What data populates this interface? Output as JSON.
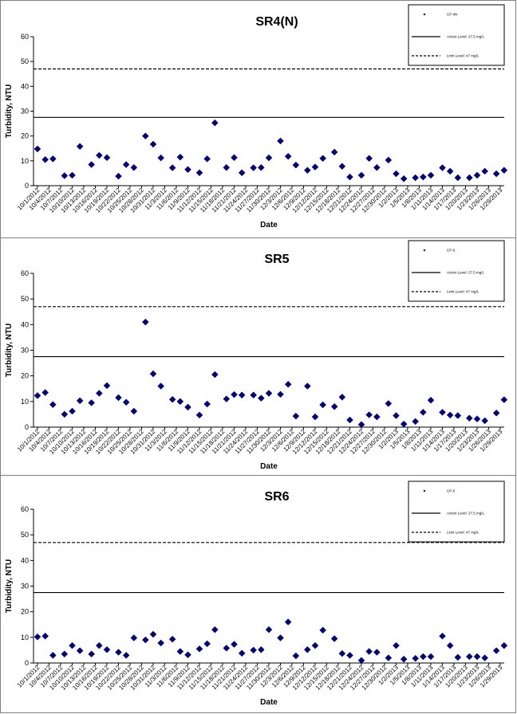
{
  "chart_data": [
    {
      "type": "scatter",
      "title": "SR4(N)",
      "xlabel": "Date",
      "ylabel": "Turbidity, NTU",
      "ylim": [
        0,
        60
      ],
      "yticks": [
        0,
        10,
        20,
        30,
        40,
        50,
        60
      ],
      "grid": false,
      "legend_position": "top-right",
      "legend": {
        "points": "CP-4N",
        "action": "Action Level: 27.5 mg/L",
        "limit": "Limit Level: 47 mg/L"
      },
      "reference_lines": [
        {
          "name": "Action Level",
          "y": 27.5,
          "style": "solid"
        },
        {
          "name": "Limit Level",
          "y": 47,
          "style": "dashed"
        }
      ],
      "x": [
        "10/1/2012",
        "10/4/2012",
        "10/7/2012",
        "10/10/2012",
        "10/13/2012",
        "10/16/2012",
        "10/19/2012",
        "10/22/2012",
        "10/25/2012",
        "10/28/2012",
        "10/31/2012",
        "11/3/2012",
        "11/6/2012",
        "11/9/2012",
        "11/12/2012",
        "11/15/2012",
        "11/18/2012",
        "11/21/2012",
        "11/24/2012",
        "11/27/2012",
        "11/30/2012",
        "12/3/2012",
        "12/6/2012",
        "12/9/2012",
        "12/12/2012",
        "12/15/2012",
        "12/18/2012",
        "12/21/2012",
        "12/24/2012",
        "12/27/2012",
        "12/30/2012",
        "1/2/2013",
        "1/5/2013",
        "1/8/2013",
        "1/11/2013",
        "1/14/2013",
        "1/17/2013",
        "1/20/2013",
        "1/23/2013",
        "1/26/2013",
        "1/29/2013"
      ],
      "series": [
        {
          "name": "CP-4N",
          "points": [
            [
              "10/1/2012",
              14.8
            ],
            [
              "10/3/2012",
              10.5
            ],
            [
              "10/5/2012",
              10.8
            ],
            [
              "10/8/2012",
              4.0
            ],
            [
              "10/10/2012",
              4.2
            ],
            [
              "10/12/2012",
              15.8
            ],
            [
              "10/15/2012",
              8.5
            ],
            [
              "10/17/2012",
              12.2
            ],
            [
              "10/19/2012",
              11.3
            ],
            [
              "10/22/2012",
              3.8
            ],
            [
              "10/24/2012",
              8.5
            ],
            [
              "10/26/2012",
              7.3
            ],
            [
              "10/29/2012",
              20.0
            ],
            [
              "10/31/2012",
              16.7
            ],
            [
              "11/2/2012",
              11.2
            ],
            [
              "11/5/2012",
              7.2
            ],
            [
              "11/7/2012",
              11.5
            ],
            [
              "11/9/2012",
              6.5
            ],
            [
              "11/12/2012",
              5.2
            ],
            [
              "11/14/2012",
              10.8
            ],
            [
              "11/16/2012",
              25.3
            ],
            [
              "11/19/2012",
              7.3
            ],
            [
              "11/21/2012",
              11.3
            ],
            [
              "11/23/2012",
              5.2
            ],
            [
              "11/26/2012",
              7.2
            ],
            [
              "11/28/2012",
              7.3
            ],
            [
              "11/30/2012",
              11.2
            ],
            [
              "12/3/2012",
              18.0
            ],
            [
              "12/5/2012",
              11.8
            ],
            [
              "12/7/2012",
              8.3
            ],
            [
              "12/10/2012",
              6.2
            ],
            [
              "12/12/2012",
              7.5
            ],
            [
              "12/14/2012",
              11.0
            ],
            [
              "12/17/2012",
              13.5
            ],
            [
              "12/19/2012",
              7.8
            ],
            [
              "12/21/2012",
              3.5
            ],
            [
              "12/24/2012",
              4.2
            ],
            [
              "12/26/2012",
              11.0
            ],
            [
              "12/28/2012",
              7.3
            ],
            [
              "12/31/2012",
              10.3
            ],
            [
              "1/2/2013",
              4.8
            ],
            [
              "1/4/2013",
              2.8
            ],
            [
              "1/7/2013",
              3.2
            ],
            [
              "1/9/2013",
              3.5
            ],
            [
              "1/11/2013",
              4.2
            ],
            [
              "1/14/2013",
              7.2
            ],
            [
              "1/16/2013",
              5.8
            ],
            [
              "1/18/2013",
              3.2
            ],
            [
              "1/21/2013",
              3.2
            ],
            [
              "1/23/2013",
              4.2
            ],
            [
              "1/25/2013",
              5.8
            ],
            [
              "1/28/2013",
              4.8
            ],
            [
              "1/30/2013",
              6.2
            ]
          ]
        }
      ]
    },
    {
      "type": "scatter",
      "title": "SR5",
      "xlabel": "Date",
      "ylabel": "Turbidity, NTU",
      "ylim": [
        0,
        60
      ],
      "yticks": [
        0,
        10,
        20,
        30,
        40,
        50,
        60
      ],
      "grid": false,
      "legend_position": "top-right",
      "legend": {
        "points": "CP-5",
        "action": "Action Level: 27.5 mg/L",
        "limit": "Limit Level: 47 mg/L"
      },
      "reference_lines": [
        {
          "name": "Action Level",
          "y": 27.5,
          "style": "solid"
        },
        {
          "name": "Limit Level",
          "y": 47,
          "style": "dashed"
        }
      ],
      "x": [
        "10/1/2012",
        "10/4/2012",
        "10/7/2012",
        "10/10/2012",
        "10/13/2012",
        "10/16/2012",
        "10/19/2012",
        "10/22/2012",
        "10/25/2012",
        "10/28/2012",
        "10/31/2012",
        "11/3/2012",
        "11/6/2012",
        "11/9/2012",
        "11/12/2012",
        "11/15/2012",
        "11/18/2012",
        "11/21/2012",
        "11/24/2012",
        "11/27/2012",
        "11/30/2012",
        "12/3/2012",
        "12/6/2012",
        "12/9/2012",
        "12/12/2012",
        "12/15/2012",
        "12/18/2012",
        "12/21/2012",
        "12/24/2012",
        "12/27/2012",
        "12/30/2012",
        "1/2/2013",
        "1/5/2013",
        "1/8/2013",
        "1/11/2013",
        "1/14/2013",
        "1/17/2013",
        "1/20/2013",
        "1/23/2013",
        "1/26/2013",
        "1/29/2013"
      ],
      "series": [
        {
          "name": "CP-5",
          "points": [
            [
              "10/1/2012",
              12.3
            ],
            [
              "10/3/2012",
              13.5
            ],
            [
              "10/5/2012",
              8.8
            ],
            [
              "10/8/2012",
              5.0
            ],
            [
              "10/10/2012",
              6.2
            ],
            [
              "10/12/2012",
              10.3
            ],
            [
              "10/15/2012",
              9.5
            ],
            [
              "10/17/2012",
              13.2
            ],
            [
              "10/19/2012",
              16.2
            ],
            [
              "10/22/2012",
              11.5
            ],
            [
              "10/24/2012",
              9.7
            ],
            [
              "10/26/2012",
              6.2
            ],
            [
              "10/29/2012",
              41.0
            ],
            [
              "10/31/2012",
              20.8
            ],
            [
              "11/2/2012",
              16.0
            ],
            [
              "11/5/2012",
              10.8
            ],
            [
              "11/7/2012",
              10.0
            ],
            [
              "11/9/2012",
              7.8
            ],
            [
              "11/12/2012",
              4.7
            ],
            [
              "11/14/2012",
              9.0
            ],
            [
              "11/16/2012",
              20.5
            ],
            [
              "11/19/2012",
              11.0
            ],
            [
              "11/21/2012",
              12.7
            ],
            [
              "11/23/2012",
              12.5
            ],
            [
              "11/26/2012",
              12.5
            ],
            [
              "11/28/2012",
              11.3
            ],
            [
              "11/30/2012",
              13.2
            ],
            [
              "12/3/2012",
              12.8
            ],
            [
              "12/5/2012",
              16.7
            ],
            [
              "12/7/2012",
              4.3
            ],
            [
              "12/10/2012",
              16.0
            ],
            [
              "12/12/2012",
              4.0
            ],
            [
              "12/14/2012",
              8.7
            ],
            [
              "12/17/2012",
              8.0
            ],
            [
              "12/19/2012",
              11.7
            ],
            [
              "12/21/2012",
              2.8
            ],
            [
              "12/24/2012",
              1.0
            ],
            [
              "12/26/2012",
              4.8
            ],
            [
              "12/28/2012",
              4.0
            ],
            [
              "12/31/2012",
              9.2
            ],
            [
              "1/2/2013",
              4.5
            ],
            [
              "1/4/2013",
              1.2
            ],
            [
              "1/7/2013",
              2.2
            ],
            [
              "1/9/2013",
              5.8
            ],
            [
              "1/11/2013",
              10.5
            ],
            [
              "1/14/2013",
              5.8
            ],
            [
              "1/16/2013",
              4.7
            ],
            [
              "1/18/2013",
              4.5
            ],
            [
              "1/21/2013",
              3.5
            ],
            [
              "1/23/2013",
              3.2
            ],
            [
              "1/25/2013",
              2.5
            ],
            [
              "1/28/2013",
              5.5
            ],
            [
              "1/30/2013",
              10.7
            ]
          ]
        }
      ]
    },
    {
      "type": "scatter",
      "title": "SR6",
      "xlabel": "Date",
      "ylabel": "Turbidity, NTU",
      "ylim": [
        0,
        60
      ],
      "yticks": [
        0,
        10,
        20,
        30,
        40,
        50,
        60
      ],
      "grid": false,
      "legend_position": "top-right",
      "legend": {
        "points": "CP-6",
        "action": "Action Level: 27.5 mg/L",
        "limit": "Limit Level: 47 mg/L"
      },
      "reference_lines": [
        {
          "name": "Action Level",
          "y": 27.5,
          "style": "solid"
        },
        {
          "name": "Limit Level",
          "y": 47,
          "style": "dashed"
        }
      ],
      "x": [
        "10/1/2012",
        "10/4/2012",
        "10/7/2012",
        "10/10/2012",
        "10/13/2012",
        "10/16/2012",
        "10/19/2012",
        "10/22/2012",
        "10/25/2012",
        "10/28/2012",
        "10/31/2012",
        "11/3/2012",
        "11/6/2012",
        "11/9/2012",
        "11/12/2012",
        "11/15/2012",
        "11/18/2012",
        "11/21/2012",
        "11/24/2012",
        "11/27/2012",
        "11/30/2012",
        "12/3/2012",
        "12/6/2012",
        "12/9/2012",
        "12/12/2012",
        "12/15/2012",
        "12/18/2012",
        "12/21/2012",
        "12/24/2012",
        "12/27/2012",
        "12/30/2012",
        "1/2/2013",
        "1/5/2013",
        "1/8/2013",
        "1/11/2013",
        "1/14/2013",
        "1/17/2013",
        "1/20/2013",
        "1/23/2013",
        "1/26/2013",
        "1/29/2013"
      ],
      "series": [
        {
          "name": "CP-6",
          "points": [
            [
              "10/1/2012",
              10.2
            ],
            [
              "10/3/2012",
              10.5
            ],
            [
              "10/5/2012",
              3.0
            ],
            [
              "10/8/2012",
              3.5
            ],
            [
              "10/10/2012",
              6.8
            ],
            [
              "10/12/2012",
              4.8
            ],
            [
              "10/15/2012",
              3.5
            ],
            [
              "10/17/2012",
              6.8
            ],
            [
              "10/19/2012",
              5.2
            ],
            [
              "10/22/2012",
              4.2
            ],
            [
              "10/24/2012",
              3.0
            ],
            [
              "10/26/2012",
              9.8
            ],
            [
              "10/29/2012",
              9.0
            ],
            [
              "10/31/2012",
              11.2
            ],
            [
              "11/2/2012",
              7.8
            ],
            [
              "11/5/2012",
              9.3
            ],
            [
              "11/7/2012",
              4.5
            ],
            [
              "11/9/2012",
              3.2
            ],
            [
              "11/12/2012",
              5.5
            ],
            [
              "11/14/2012",
              7.5
            ],
            [
              "11/16/2012",
              13.0
            ],
            [
              "11/19/2012",
              5.8
            ],
            [
              "11/21/2012",
              7.3
            ],
            [
              "11/23/2012",
              3.8
            ],
            [
              "11/26/2012",
              5.0
            ],
            [
              "11/28/2012",
              5.2
            ],
            [
              "11/30/2012",
              13.0
            ],
            [
              "12/3/2012",
              9.8
            ],
            [
              "12/5/2012",
              16.0
            ],
            [
              "12/7/2012",
              2.8
            ],
            [
              "12/10/2012",
              5.2
            ],
            [
              "12/12/2012",
              6.8
            ],
            [
              "12/14/2012",
              12.8
            ],
            [
              "12/17/2012",
              9.5
            ],
            [
              "12/19/2012",
              3.7
            ],
            [
              "12/21/2012",
              3.0
            ],
            [
              "12/24/2012",
              1.0
            ],
            [
              "12/26/2012",
              4.5
            ],
            [
              "12/28/2012",
              4.2
            ],
            [
              "12/31/2012",
              2.0
            ],
            [
              "1/2/2013",
              6.8
            ],
            [
              "1/4/2013",
              1.5
            ],
            [
              "1/7/2013",
              1.8
            ],
            [
              "1/9/2013",
              2.5
            ],
            [
              "1/11/2013",
              2.5
            ],
            [
              "1/14/2013",
              10.5
            ],
            [
              "1/16/2013",
              6.8
            ],
            [
              "1/18/2013",
              2.2
            ],
            [
              "1/21/2013",
              2.5
            ],
            [
              "1/23/2013",
              2.5
            ],
            [
              "1/25/2013",
              2.0
            ],
            [
              "1/28/2013",
              4.8
            ],
            [
              "1/30/2013",
              6.8
            ]
          ]
        }
      ]
    }
  ]
}
